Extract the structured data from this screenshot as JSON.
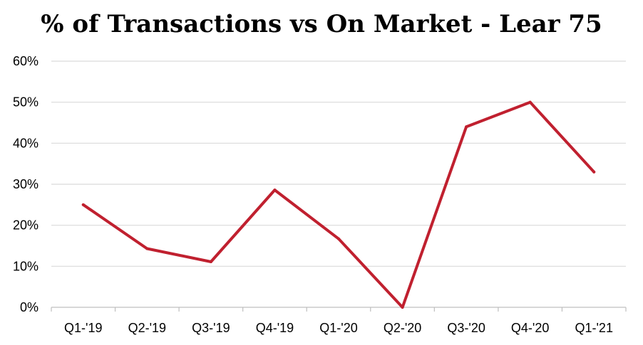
{
  "chart_data": {
    "type": "line",
    "title": "% of Transactions vs On Market - Lear 75",
    "title_bold_prefix": "%",
    "title_rest": " of Transactions vs On Market - Lear 75",
    "xlabel": "",
    "ylabel": "",
    "categories": [
      "Q1-'19",
      "Q2-'19",
      "Q3-'19",
      "Q4-'19",
      "Q1-'20",
      "Q2-'20",
      "Q3-'20",
      "Q4-'20",
      "Q1-'21"
    ],
    "series": [
      {
        "values": [
          25,
          14.3,
          11.1,
          28.6,
          16.7,
          0,
          44,
          50,
          33
        ]
      }
    ],
    "ylim": [
      0,
      60
    ],
    "y_ticks": [
      0,
      10,
      20,
      30,
      40,
      50,
      60
    ],
    "y_tick_labels": [
      "0%",
      "10%",
      "20%",
      "30%",
      "40%",
      "50%",
      "60%"
    ],
    "grid": true,
    "legend": "none"
  },
  "colors": {
    "line": "#c0202f",
    "grid": "#d9d9d9",
    "axis": "#bfbfbf"
  }
}
